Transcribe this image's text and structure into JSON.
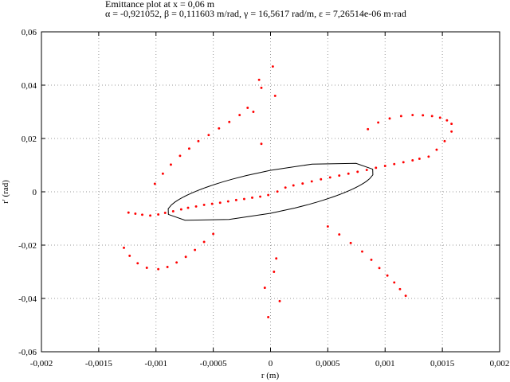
{
  "chart_data": {
    "type": "scatter",
    "title": "Emittance plot at x = 0,06 m",
    "subtitle": "α = -0,921052, β = 0,111603 m/rad, γ = 16,5617 rad/m, ε = 7,26514e-06 m·rad",
    "xlabel": "r (m)",
    "ylabel": "r' (rad)",
    "xlim": [
      -0.002,
      0.002
    ],
    "ylim": [
      -0.06,
      0.06
    ],
    "x_ticks": [
      -0.002,
      -0.0015,
      -0.001,
      -0.0005,
      0,
      0.0005,
      0.001,
      0.0015,
      0.002
    ],
    "x_tick_labels": [
      "-0,002",
      "-0,0015",
      "-0,001",
      "-0,0005",
      "0",
      "0,0005",
      "0,001",
      "0,0015",
      "0,002"
    ],
    "y_ticks": [
      -0.06,
      -0.04,
      -0.02,
      0,
      0.02,
      0.04,
      0.06
    ],
    "y_tick_labels": [
      "-0,06",
      "-0,04",
      "-0,02",
      "0",
      "0,02",
      "0,04",
      "0,06"
    ],
    "grid": true,
    "ellipse": {
      "alpha": -0.921052,
      "beta": 0.111603,
      "gamma": 16.5617,
      "epsilon": 7.26514e-06,
      "color": "#000000"
    },
    "series": [
      {
        "color": "#ff0000",
        "points": [
          [
            -0.00124,
            -0.0078
          ],
          [
            -0.00118,
            -0.0082
          ],
          [
            -0.00112,
            -0.0086
          ],
          [
            -0.00105,
            -0.0089
          ],
          [
            -0.00098,
            -0.0085
          ],
          [
            -0.00092,
            -0.0079
          ],
          [
            -0.00085,
            -0.0073
          ],
          [
            -0.00078,
            -0.0066
          ],
          [
            -0.00072,
            -0.006
          ],
          [
            -0.00065,
            -0.0055
          ],
          [
            -0.00058,
            -0.0049
          ],
          [
            -0.00051,
            -0.0045
          ],
          [
            -0.00044,
            -0.0041
          ],
          [
            -0.00037,
            -0.0036
          ],
          [
            -0.0003,
            -0.0031
          ],
          [
            -0.00023,
            -0.0027
          ],
          [
            -0.00016,
            -0.0022
          ],
          [
            -9e-05,
            -0.0018
          ],
          [
            -2e-05,
            -0.0012
          ],
          [
            6e-05,
            0.0001
          ],
          [
            0.00013,
            0.0016
          ],
          [
            0.0002,
            0.0024
          ],
          [
            0.00028,
            0.0031
          ],
          [
            0.00036,
            0.0039
          ],
          [
            0.00044,
            0.0047
          ],
          [
            0.00052,
            0.0054
          ],
          [
            0.0006,
            0.0061
          ],
          [
            0.00068,
            0.0068
          ],
          [
            0.00076,
            0.0075
          ],
          [
            0.00084,
            0.0082
          ],
          [
            0.00092,
            0.009
          ],
          [
            0.001,
            0.0097
          ],
          [
            0.00108,
            0.0104
          ],
          [
            0.00116,
            0.0111
          ],
          [
            0.00124,
            0.0118
          ],
          [
            0.0013,
            0.0124
          ],
          [
            -0.00128,
            -0.021
          ],
          [
            -0.00123,
            -0.024
          ],
          [
            -0.00116,
            -0.0268
          ],
          [
            -0.00108,
            -0.0285
          ],
          [
            -0.00098,
            -0.029
          ],
          [
            -0.0009,
            -0.0282
          ],
          [
            -0.00082,
            -0.0265
          ],
          [
            -0.00074,
            -0.0244
          ],
          [
            -0.00066,
            -0.0218
          ],
          [
            -0.00058,
            -0.0188
          ],
          [
            -0.0005,
            -0.0158
          ],
          [
            -0.00101,
            0.003
          ],
          [
            -0.00094,
            0.0068
          ],
          [
            -0.00087,
            0.0102
          ],
          [
            -0.00079,
            0.0135
          ],
          [
            -0.00071,
            0.0162
          ],
          [
            -0.00063,
            0.019
          ],
          [
            -0.00054,
            0.0213
          ],
          [
            -0.00045,
            0.0238
          ],
          [
            -0.00036,
            0.0262
          ],
          [
            -0.00027,
            0.0288
          ],
          [
            -0.0002,
            0.0315
          ],
          [
            0.0005,
            -0.013
          ],
          [
            0.0006,
            -0.016
          ],
          [
            0.0007,
            -0.0192
          ],
          [
            0.0008,
            -0.0224
          ],
          [
            0.00088,
            -0.0255
          ],
          [
            0.00095,
            -0.0286
          ],
          [
            0.00102,
            -0.0314
          ],
          [
            0.00108,
            -0.034
          ],
          [
            0.00113,
            -0.0365
          ],
          [
            0.00118,
            -0.039
          ],
          [
            0.00085,
            0.0235
          ],
          [
            0.00094,
            0.026
          ],
          [
            0.00104,
            0.0275
          ],
          [
            0.00114,
            0.0284
          ],
          [
            0.00124,
            0.0288
          ],
          [
            0.00133,
            0.0287
          ],
          [
            0.00141,
            0.0284
          ],
          [
            0.00148,
            0.0278
          ],
          [
            0.00154,
            0.0268
          ],
          [
            0.00158,
            0.0255
          ],
          [
            0.00158,
            0.0226
          ],
          [
            0.00152,
            0.019
          ],
          [
            0.00145,
            0.0158
          ],
          [
            0.00138,
            0.0132
          ],
          [
            2e-05,
            0.047
          ],
          [
            -0.0001,
            0.042
          ],
          [
            -8e-05,
            0.039
          ],
          [
            4e-05,
            0.036
          ],
          [
            -0.00015,
            0.03
          ],
          [
            -8e-05,
            0.018
          ],
          [
            5e-05,
            -0.025
          ],
          [
            3e-05,
            -0.03
          ],
          [
            -5e-05,
            -0.036
          ],
          [
            8e-05,
            -0.041
          ],
          [
            -2e-05,
            -0.047
          ]
        ]
      }
    ]
  }
}
